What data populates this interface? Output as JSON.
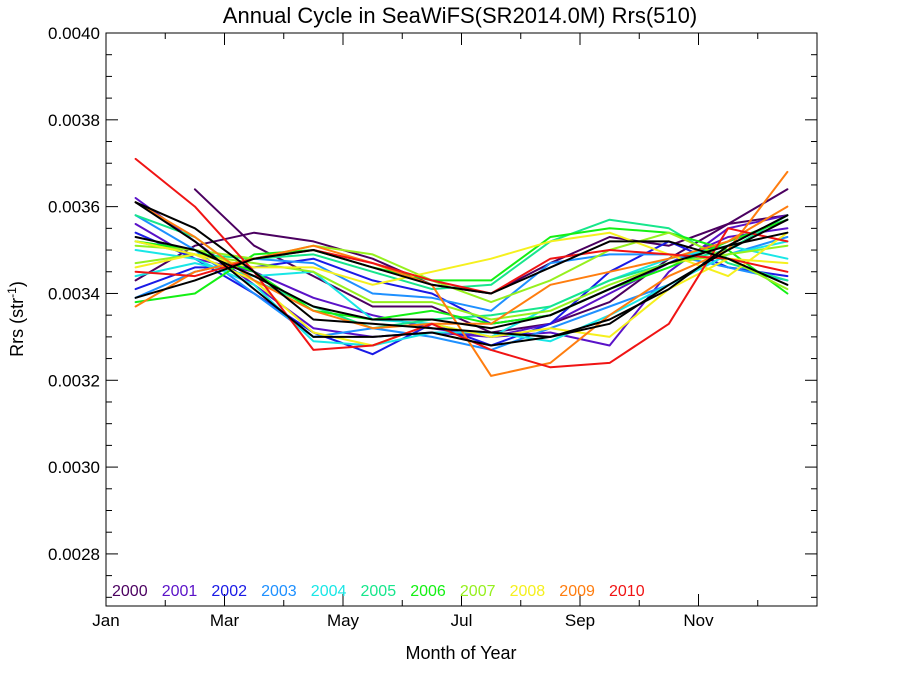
{
  "chart_data": {
    "type": "line",
    "title": "Annual Cycle in SeaWiFS(SR2014.0M) Rrs(510)",
    "xlabel": "Month of Year",
    "ylabel_main": "Rrs (str",
    "ylabel_sup": "-1",
    "ylabel_close": ")",
    "xlim": [
      0,
      12
    ],
    "ylim": [
      0.00268,
      0.004
    ],
    "x_ticks": [
      {
        "value": 0,
        "label": "Jan"
      },
      {
        "value": 2,
        "label": "Mar"
      },
      {
        "value": 4,
        "label": "May"
      },
      {
        "value": 6,
        "label": "Jul"
      },
      {
        "value": 8,
        "label": "Sep"
      },
      {
        "value": 10,
        "label": "Nov"
      }
    ],
    "x_minor_ticks": [
      1,
      3,
      5,
      7,
      9,
      11
    ],
    "y_ticks": [
      {
        "value": 0.0028,
        "label": "0.0028"
      },
      {
        "value": 0.003,
        "label": "0.0030"
      },
      {
        "value": 0.0032,
        "label": "0.0032"
      },
      {
        "value": 0.0034,
        "label": "0.0034"
      },
      {
        "value": 0.0036,
        "label": "0.0036"
      },
      {
        "value": 0.0038,
        "label": "0.0038"
      },
      {
        "value": 0.004,
        "label": "0.0040"
      }
    ],
    "y_minor_step": 5e-05,
    "grid": false,
    "legend_position": "bottom-left",
    "x": [
      0.5,
      1.5,
      2.5,
      3.5,
      4.5,
      5.5,
      6.5,
      7.5,
      8.5,
      9.5,
      10.5,
      11.5
    ],
    "legend": [
      {
        "label": "2000",
        "color": "#4b0060"
      },
      {
        "label": "2001",
        "color": "#5a12c8"
      },
      {
        "label": "2002",
        "color": "#1a1ae6"
      },
      {
        "label": "2003",
        "color": "#1e90ff"
      },
      {
        "label": "2004",
        "color": "#19e6e6"
      },
      {
        "label": "2005",
        "color": "#17e68c"
      },
      {
        "label": "2006",
        "color": "#14f014"
      },
      {
        "label": "2007",
        "color": "#96f01e"
      },
      {
        "label": "2008",
        "color": "#f5f01e"
      },
      {
        "label": "2009",
        "color": "#ff7d0f"
      },
      {
        "label": "2010",
        "color": "#f01414"
      }
    ],
    "series": [
      {
        "color": "#4b0060",
        "values": [
          0.00343,
          0.00351,
          0.00354,
          0.00352,
          0.00348,
          0.00342,
          0.0034,
          0.00347,
          0.00353,
          0.00351,
          0.00356,
          0.00358
        ]
      },
      {
        "color": "#4b0060",
        "values": [
          null,
          0.00364,
          0.00351,
          0.00344,
          0.00337,
          0.00337,
          0.00331,
          0.00333,
          0.00338,
          0.00348,
          0.00356,
          0.00364
        ]
      },
      {
        "color": "#5a12c8",
        "values": [
          0.00356,
          0.00348,
          0.00345,
          0.00339,
          0.00335,
          0.00332,
          0.0033,
          0.00331,
          0.00328,
          0.00345,
          0.00355,
          0.00358
        ]
      },
      {
        "color": "#5a12c8",
        "values": [
          0.00362,
          0.00352,
          0.00342,
          0.00332,
          0.0033,
          0.00331,
          0.0033,
          0.00333,
          0.0034,
          0.00347,
          0.00353,
          0.00355
        ]
      },
      {
        "color": "#1a1ae6",
        "values": [
          0.00354,
          0.00348,
          0.0034,
          0.00331,
          0.00326,
          0.00333,
          0.00328,
          0.00333,
          0.00345,
          0.00352,
          0.00346,
          0.00344
        ]
      },
      {
        "color": "#1a1ae6",
        "values": [
          0.00341,
          0.00346,
          0.00346,
          0.00348,
          0.00343,
          0.0034,
          0.00333,
          0.00335,
          0.00341,
          0.00347,
          0.00352,
          0.00357
        ]
      },
      {
        "color": "#1e90ff",
        "values": [
          0.00339,
          0.00345,
          0.00348,
          0.00347,
          0.0034,
          0.00339,
          0.00336,
          0.00347,
          0.00349,
          0.00349,
          0.00346,
          0.00343
        ]
      },
      {
        "color": "#1e90ff",
        "values": [
          0.00358,
          0.0035,
          0.0034,
          0.0033,
          0.00332,
          0.0033,
          0.00327,
          0.00332,
          0.00337,
          0.00342,
          0.00349,
          0.00353
        ]
      },
      {
        "color": "#19e6e6",
        "values": [
          0.0035,
          0.00348,
          0.00342,
          0.00329,
          0.00328,
          0.00331,
          0.00331,
          0.00329,
          0.00335,
          0.00342,
          0.00349,
          0.00352
        ]
      },
      {
        "color": "#19e6e6",
        "values": [
          0.00344,
          0.00347,
          0.00344,
          0.00345,
          0.00334,
          0.00333,
          0.0033,
          0.00337,
          0.00343,
          0.00348,
          0.00351,
          0.00348
        ]
      },
      {
        "color": "#17e68c",
        "values": [
          0.00358,
          0.00353,
          0.00343,
          0.00337,
          0.00332,
          0.00334,
          0.00335,
          0.00337,
          0.00343,
          0.00347,
          0.0035,
          0.00358
        ]
      },
      {
        "color": "#17e68c",
        "values": [
          0.00352,
          0.00349,
          0.00348,
          0.00349,
          0.00345,
          0.00341,
          0.00342,
          0.00352,
          0.00357,
          0.00355,
          0.00347,
          0.00343
        ]
      },
      {
        "color": "#14f014",
        "values": [
          0.00338,
          0.0034,
          0.00349,
          0.0035,
          0.00346,
          0.00343,
          0.00343,
          0.00353,
          0.00355,
          0.00354,
          0.0035,
          0.0034
        ]
      },
      {
        "color": "#14f014",
        "values": [
          0.00352,
          0.0035,
          0.00345,
          0.00336,
          0.00334,
          0.00336,
          0.00333,
          0.00335,
          0.00341,
          0.00346,
          0.00352,
          0.00357
        ]
      },
      {
        "color": "#96f01e",
        "values": [
          0.00351,
          0.0035,
          0.00348,
          0.00351,
          0.00349,
          0.00343,
          0.00338,
          0.00343,
          0.0035,
          0.00354,
          0.00348,
          0.00341
        ]
      },
      {
        "color": "#96f01e",
        "values": [
          0.00347,
          0.00349,
          0.00347,
          0.00345,
          0.00338,
          0.00338,
          0.00334,
          0.00336,
          0.00342,
          0.00347,
          0.00349,
          0.00351
        ]
      },
      {
        "color": "#f5f01e",
        "values": [
          0.00352,
          0.00349,
          0.00346,
          0.00346,
          0.00342,
          0.00345,
          0.00348,
          0.00352,
          0.00354,
          0.00349,
          0.00344,
          0.00354
        ]
      },
      {
        "color": "#f5f01e",
        "values": [
          0.00346,
          0.00349,
          0.00343,
          0.00331,
          0.00328,
          0.00333,
          0.0033,
          0.00332,
          0.0033,
          0.00341,
          0.00348,
          0.00347
        ]
      },
      {
        "color": "#ff7d0f",
        "values": [
          0.00337,
          0.00345,
          0.00348,
          0.00351,
          0.00347,
          0.00342,
          0.00321,
          0.00324,
          0.00335,
          0.00344,
          0.0035,
          0.00368
        ]
      },
      {
        "color": "#ff7d0f",
        "values": [
          0.00361,
          0.00353,
          0.00343,
          0.00336,
          0.00332,
          0.00333,
          0.00333,
          0.00342,
          0.00345,
          0.00348,
          0.00352,
          0.0036
        ]
      },
      {
        "color": "#f01414",
        "values": [
          0.00371,
          0.0036,
          0.00345,
          0.00327,
          0.00328,
          0.00333,
          0.00327,
          0.00323,
          0.00324,
          0.00333,
          0.00355,
          0.00352
        ]
      },
      {
        "color": "#f01414",
        "values": [
          0.00345,
          0.00344,
          0.00348,
          0.0035,
          0.00347,
          0.00343,
          0.0034,
          0.00348,
          0.0035,
          0.00349,
          0.00348,
          0.00345
        ]
      },
      {
        "color": "#000000",
        "width": 3,
        "values": [
          0.00353,
          0.0035,
          0.00344,
          0.00337,
          0.00334,
          0.00334,
          0.00332,
          0.00335,
          0.00341,
          0.00347,
          0.00351,
          0.00354
        ]
      },
      {
        "color": "#000000",
        "width": 2.5,
        "values": [
          0.00339,
          0.00343,
          0.00348,
          0.0035,
          0.00346,
          0.00342,
          0.0034,
          0.00346,
          0.00352,
          0.00352,
          0.00348,
          0.00342
        ]
      },
      {
        "color": "#000000",
        "width": 2.5,
        "values": [
          0.00361,
          0.00352,
          0.00341,
          0.0033,
          0.0033,
          0.00331,
          0.00328,
          0.0033,
          0.00334,
          0.00341,
          0.00351,
          0.00358
        ]
      },
      {
        "color": "#000000",
        "width": 2.5,
        "values": [
          0.00361,
          0.00355,
          0.00345,
          0.00334,
          0.00333,
          0.00332,
          0.00331,
          0.0033,
          0.00333,
          0.00342,
          0.0035,
          0.00357
        ]
      }
    ]
  }
}
